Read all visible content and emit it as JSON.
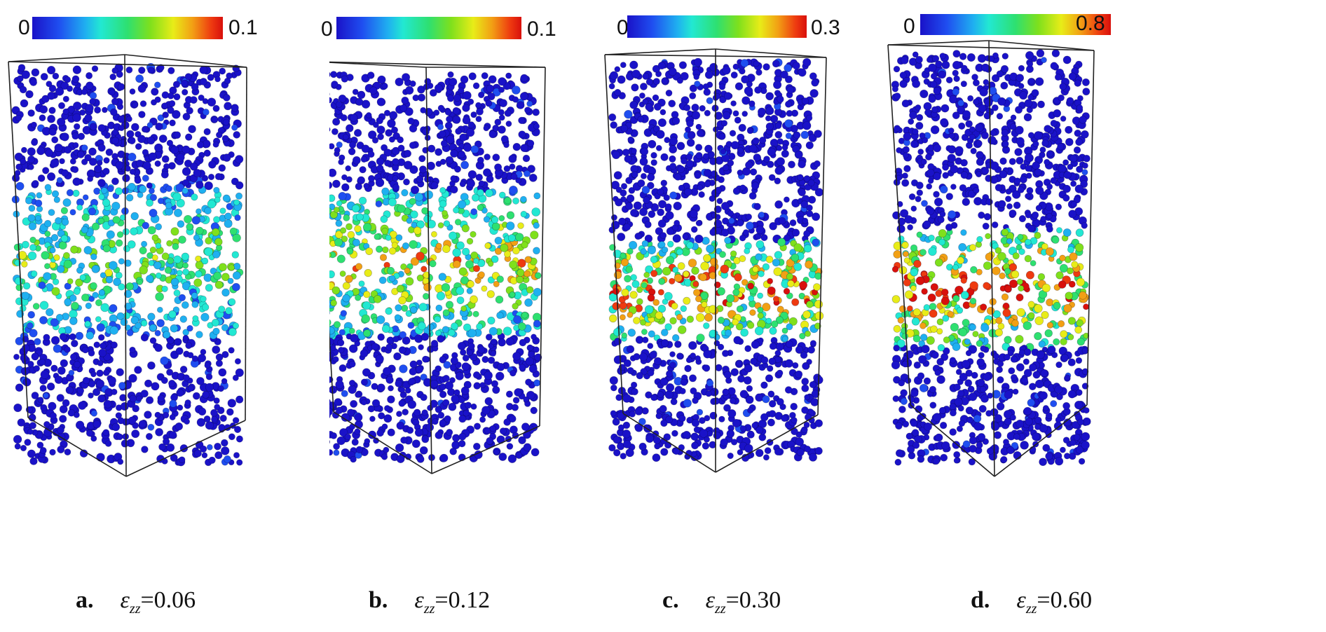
{
  "panels": [
    {
      "letter": "a.",
      "symbol": "ε",
      "subscript": "zz",
      "value": "=0.06",
      "colorbar_min": "0",
      "colorbar_max": "0.1",
      "strain_fraction_of_max": [
        0.0,
        0.55,
        0.35
      ]
    },
    {
      "letter": "b.",
      "symbol": "ε",
      "subscript": "zz",
      "value": "=0.12",
      "colorbar_min": "0",
      "colorbar_max": "0.1",
      "strain_fraction_of_max": [
        0.0,
        0.75,
        0.6
      ]
    },
    {
      "letter": "c.",
      "symbol": "ε",
      "subscript": "zz",
      "value": "=0.30",
      "colorbar_min": "0",
      "colorbar_max": "0.3",
      "strain_fraction_of_max": [
        0.0,
        0.95,
        0.7
      ]
    },
    {
      "letter": "d.",
      "symbol": "ε",
      "subscript": "zz",
      "value": "=0.60",
      "colorbar_min": "0",
      "colorbar_max": "0.8",
      "strain_fraction_of_max": [
        0.0,
        1.0,
        0.9
      ]
    }
  ],
  "colormap": [
    "#1a12c8",
    "#1f4ef0",
    "#1fb0f0",
    "#22e8d2",
    "#2ee070",
    "#7fe01c",
    "#e8ec18",
    "#f2a014",
    "#ee3a10",
    "#d8100c"
  ]
}
